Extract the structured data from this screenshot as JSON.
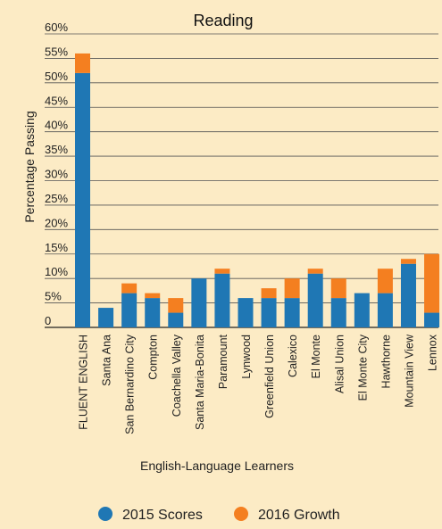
{
  "chart_data": {
    "type": "bar",
    "stacked": true,
    "title": "Reading",
    "xlabel": "English-Language Learners",
    "ylabel": "Percentage Passing",
    "ylim": [
      0,
      60
    ],
    "y_ticks": [
      "0",
      "5%",
      "10%",
      "15%",
      "20%",
      "25%",
      "30%",
      "35%",
      "40%",
      "45%",
      "50%",
      "55%",
      "60%"
    ],
    "grid": true,
    "legend_position": "bottom",
    "categories": [
      "FLUENT ENGLISH",
      "Santa Ana",
      "San Bernardino City",
      "Compton",
      "Coachella Valley",
      "Santa Maria-Bonita",
      "Paramount",
      "Lynwood",
      "Greenfield Union",
      "Calexico",
      "El Monte",
      "Alisal Union",
      "El Monte City",
      "Hawthorne",
      "Mountain View",
      "Lennox"
    ],
    "series": [
      {
        "name": "2015 Scores",
        "color": "#1f77b4",
        "values": [
          52,
          4,
          7,
          6,
          3,
          10,
          11,
          6,
          6,
          6,
          11,
          6,
          7,
          7,
          13,
          3
        ]
      },
      {
        "name": "2016 Growth",
        "color": "#f47f20",
        "values": [
          4,
          0,
          2,
          1,
          3,
          0,
          1,
          0,
          2,
          4,
          1,
          4,
          0,
          5,
          1,
          12
        ]
      }
    ]
  }
}
